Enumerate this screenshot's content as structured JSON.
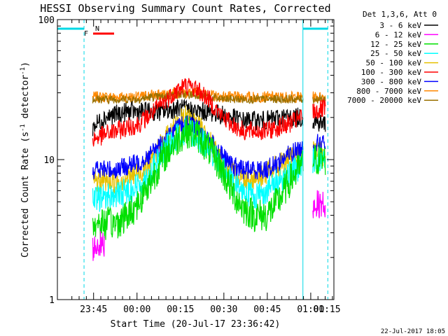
{
  "chart_data": {
    "type": "line",
    "title": "HESSI Observing Summary Count Rates, Corrected",
    "xlabel": "Start Time (20-Jul-17 23:36:42)",
    "ylabel_prefix": "Corrected Count Rate (s",
    "ylabel_sup1": "-1",
    "ylabel_mid": " detector",
    "ylabel_sup2": "-1",
    "ylabel_suffix": ")",
    "yscale": "log",
    "ylim": [
      1,
      100
    ],
    "y_ticks": [
      {
        "v": 1,
        "label": "1"
      },
      {
        "v": 10,
        "label": "10"
      },
      {
        "v": 100,
        "label": "100"
      }
    ],
    "xlim_min": [
      -4.2,
      91.3
    ],
    "x_ticks": [
      {
        "v": 8.3,
        "label": "23:45"
      },
      {
        "v": 23.3,
        "label": "00:00"
      },
      {
        "v": 38.3,
        "label": "00:15"
      },
      {
        "v": 53.3,
        "label": "00:30"
      },
      {
        "v": 68.3,
        "label": "00:45"
      },
      {
        "v": 83.3,
        "label": "01:00"
      },
      {
        "v": 98.3,
        "label": "01:15"
      }
    ],
    "legend_placement": "right",
    "legend_title": "Det 1,3,6, Att 0",
    "flags": [
      {
        "label": "N",
        "color": "#00c8d8",
        "start": 0,
        "end": 0
      },
      {
        "label": "F",
        "color": "#ff0000",
        "start": 0,
        "end": 0
      }
    ],
    "footer": "22-Jul-2017 18:05",
    "series": [
      {
        "name": "3 - 6 keV",
        "color": "#000000",
        "x": [
          8,
          12,
          16,
          20,
          24,
          28,
          32,
          36,
          40,
          44,
          48,
          52,
          56,
          60,
          64,
          68,
          72,
          76,
          80,
          84,
          88
        ],
        "y": [
          17,
          20,
          21,
          22,
          22,
          22,
          22,
          23,
          23,
          22,
          22,
          21,
          20,
          19,
          19,
          19,
          20,
          20,
          20,
          19,
          18
        ]
      },
      {
        "name": "6 - 12 keV",
        "color": "#ff00ff",
        "x": [
          8,
          10,
          12
        ],
        "y": [
          2.3,
          2.5,
          2.4
        ]
      },
      {
        "name": "12 - 25 keV",
        "color": "#00e000",
        "x": [
          8,
          12,
          16,
          20,
          24,
          28,
          32,
          36,
          40,
          44,
          48,
          52,
          56,
          60,
          64,
          68,
          72,
          76,
          80,
          84,
          88
        ],
        "y": [
          3.5,
          3.5,
          3.5,
          4,
          5,
          7,
          10,
          13,
          16,
          15,
          12,
          9,
          6,
          4.5,
          4,
          4,
          5,
          7,
          9,
          10,
          10
        ]
      },
      {
        "name": "25 - 50 keV",
        "color": "#00ffff",
        "x": [
          8,
          12,
          16,
          20,
          24,
          28,
          32,
          36,
          40,
          44,
          48,
          52,
          56,
          60,
          64,
          68,
          72,
          76,
          80,
          84,
          88
        ],
        "y": [
          5,
          5.5,
          5.5,
          6,
          6.5,
          8,
          11,
          14,
          16,
          15,
          12,
          9,
          7,
          6,
          5.5,
          6,
          7,
          8,
          9,
          10,
          10
        ]
      },
      {
        "name": "50 - 100 keV",
        "color": "#e6c000",
        "x": [
          8,
          12,
          16,
          20,
          24,
          28,
          32,
          36,
          40,
          44,
          48,
          52,
          56,
          60,
          64,
          68,
          72,
          76,
          80,
          84,
          88
        ],
        "y": [
          7,
          7,
          7,
          7.5,
          8,
          9.5,
          13,
          17,
          20,
          18,
          14,
          10,
          8,
          7.5,
          7.5,
          8,
          9,
          10,
          11,
          11,
          11
        ]
      },
      {
        "name": "100 - 300 keV",
        "color": "#ff0000",
        "x": [
          8,
          12,
          16,
          20,
          24,
          28,
          32,
          36,
          40,
          44,
          48,
          52,
          56,
          60,
          64,
          68,
          72,
          76,
          80,
          84,
          88
        ],
        "y": [
          14,
          15,
          16,
          17,
          18,
          21,
          25,
          30,
          34,
          32,
          27,
          21,
          18,
          16,
          16,
          16,
          17,
          18,
          20,
          22,
          23
        ]
      },
      {
        "name": "300 - 800 keV",
        "color": "#0000ff",
        "x": [
          8,
          12,
          16,
          20,
          24,
          28,
          32,
          36,
          40,
          44,
          48,
          52,
          56,
          60,
          64,
          68,
          72,
          76,
          80,
          84,
          88
        ],
        "y": [
          8.5,
          8.5,
          8.5,
          9,
          9.5,
          11,
          13,
          16,
          18,
          17,
          14,
          11,
          9,
          8.5,
          8.5,
          8.5,
          9.5,
          11,
          12,
          13,
          13
        ]
      },
      {
        "name": "800 - 7000 keV",
        "color": "#ff8800",
        "x": [
          8,
          12,
          16,
          20,
          24,
          28,
          32,
          36,
          40,
          44,
          48,
          52,
          56,
          60,
          64,
          68,
          72,
          76,
          80,
          84,
          88
        ],
        "y": [
          28,
          28,
          28,
          28,
          28,
          29,
          29,
          30,
          30,
          30,
          29,
          28,
          28,
          28,
          28,
          28,
          28,
          28,
          28,
          28,
          28
        ]
      },
      {
        "name": "7000 - 20000 keV",
        "color": "#9a7000",
        "x": [
          8,
          12,
          16,
          20,
          24,
          28,
          32,
          36,
          40,
          44,
          48,
          52,
          56,
          60,
          64,
          68,
          72,
          76,
          80,
          84,
          88
        ],
        "y": [
          27,
          27,
          27,
          27,
          27,
          28,
          28,
          29,
          29,
          29,
          28,
          27,
          27,
          27,
          27,
          27,
          27,
          27,
          27,
          27,
          27
        ]
      }
    ],
    "gaps": [
      {
        "name": "saa-left",
        "start": -4.2,
        "end": 5.0
      },
      {
        "name": "saa-right",
        "start": 80.4,
        "end": 91.3
      }
    ]
  }
}
